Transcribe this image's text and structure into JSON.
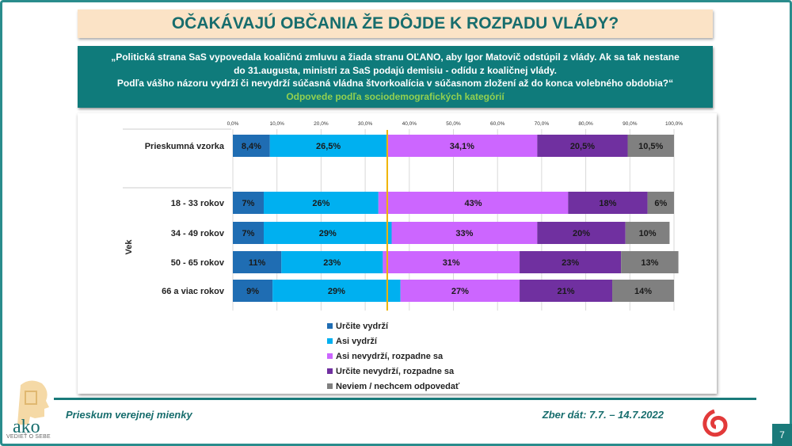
{
  "title": "OČAKÁVAJÚ OBČANIA ŽE DÔJDE K ROZPADU VLÁDY?",
  "question": {
    "line1": "„Politická strana SaS vypovedala koaličnú zmluvu a žiada stranu OĽANO, aby Igor Matovič odstúpil z vlády. Ak sa tak nestane",
    "line2": "do 31.augusta, ministri za SaS podajú demisiu - odídu z koaličnej vlády.",
    "line3": "Podľa vášho názoru vydrží či nevydrží súčasná vládna štvorkoalícia v súčasnom zložení až do konca volebného obdobia?“",
    "subtitle": "Odpovede podľa sociodemografických kategórií"
  },
  "chart_data": {
    "type": "stacked-bar-horizontal",
    "xlim": [
      0,
      100
    ],
    "xticks": [
      "0,0%",
      "10,0%",
      "20,0%",
      "30,0%",
      "40,0%",
      "50,0%",
      "60,0%",
      "70,0%",
      "80,0%",
      "90,0%",
      "100,0%"
    ],
    "group_label": "Vek",
    "reference_line": 35,
    "legend_position": "bottom",
    "series": [
      {
        "name": "Určite vydrží",
        "color": "#1f6db3"
      },
      {
        "name": "Asi vydrží",
        "color": "#00b0f0"
      },
      {
        "name": "Asi nevydrží, rozpadne sa",
        "color": "#cc66ff"
      },
      {
        "name": "Určite nevydrží, rozpadne sa",
        "color": "#7030a0"
      },
      {
        "name": "Neviem / nechcem odpovedať",
        "color": "#808080"
      }
    ],
    "rows": [
      {
        "label": "Prieskumná vzorka",
        "values": [
          8.4,
          26.5,
          34.1,
          20.5,
          10.5
        ],
        "labels": [
          "8,4%",
          "26,5%",
          "34,1%",
          "20,5%",
          "10,5%"
        ]
      },
      {
        "label": "18 - 33 rokov",
        "values": [
          7,
          26,
          43,
          18,
          6
        ],
        "labels": [
          "7%",
          "26%",
          "43%",
          "18%",
          "6%"
        ]
      },
      {
        "label": "34 - 49 rokov",
        "values": [
          7,
          29,
          33,
          20,
          10
        ],
        "labels": [
          "7%",
          "29%",
          "33%",
          "20%",
          "10%"
        ]
      },
      {
        "label": "50 - 65 rokov",
        "values": [
          11,
          23,
          31,
          23,
          13
        ],
        "labels": [
          "11%",
          "23%",
          "31%",
          "23%",
          "13%"
        ]
      },
      {
        "label": "66 a viac rokov",
        "values": [
          9,
          29,
          27,
          21,
          14
        ],
        "labels": [
          "9%",
          "29%",
          "27%",
          "21%",
          "14%"
        ]
      }
    ]
  },
  "footer": {
    "left": "Prieskum verejnej mienky",
    "right": "Zber dát: 7.7. – 14.7.2022",
    "page": "7",
    "logo": "ako",
    "logo_tagline": "VEDIEŤ O SEBE"
  }
}
